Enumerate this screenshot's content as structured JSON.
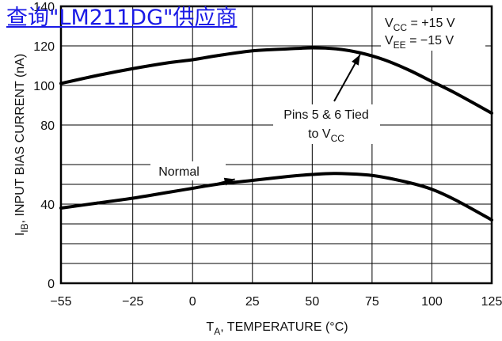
{
  "link": {
    "text": "查询\"LM211DG\"供应商"
  },
  "chart_data": {
    "type": "line",
    "xlabel": {
      "base": "T",
      "sub": "A",
      "rest": ", TEMPERATURE (°C)"
    },
    "ylabel": {
      "base": "I",
      "sub": "IB",
      "rest": ", INPUT BIAS CURRENT (nA)"
    },
    "xlim": [
      -55,
      125
    ],
    "ylim": [
      0,
      140
    ],
    "x_ticks": [
      -55,
      -25,
      0,
      25,
      50,
      75,
      100,
      125
    ],
    "x_tick_labels": [
      "−55",
      "−25",
      "0",
      "25",
      "50",
      "75",
      "100",
      "125"
    ],
    "y_ticks": [
      0,
      40,
      80,
      100,
      120,
      140
    ],
    "y_tick_labels": [
      "0",
      "40",
      "80",
      "100",
      "120",
      "140"
    ],
    "grid": true,
    "conditions": [
      {
        "base": "V",
        "sub": "CC",
        "rest": " = +15 V"
      },
      {
        "base": "V",
        "sub": "EE",
        "rest": " = −15 V"
      }
    ],
    "series": [
      {
        "name": "Pins 5 & 6 Tied to VCC",
        "label_line1": "Pins 5 & 6 Tied",
        "label_line2_base": "to V",
        "label_line2_sub": "CC",
        "x": [
          -55,
          -40,
          -25,
          -10,
          0,
          10,
          25,
          40,
          50,
          60,
          70,
          80,
          90,
          100,
          110,
          125
        ],
        "y": [
          101,
          105,
          108.5,
          111.5,
          113,
          115,
          117.5,
          118.5,
          119,
          118.5,
          116.5,
          113,
          108,
          102,
          96,
          86
        ]
      },
      {
        "name": "Normal",
        "label_line1": "Normal",
        "x": [
          -55,
          -40,
          -25,
          -10,
          0,
          10,
          25,
          40,
          50,
          60,
          75,
          90,
          100,
          110,
          125
        ],
        "y": [
          38,
          40.5,
          43,
          46,
          48,
          50,
          52,
          54,
          55,
          55.5,
          54.5,
          51,
          47.5,
          42,
          32
        ]
      }
    ]
  }
}
